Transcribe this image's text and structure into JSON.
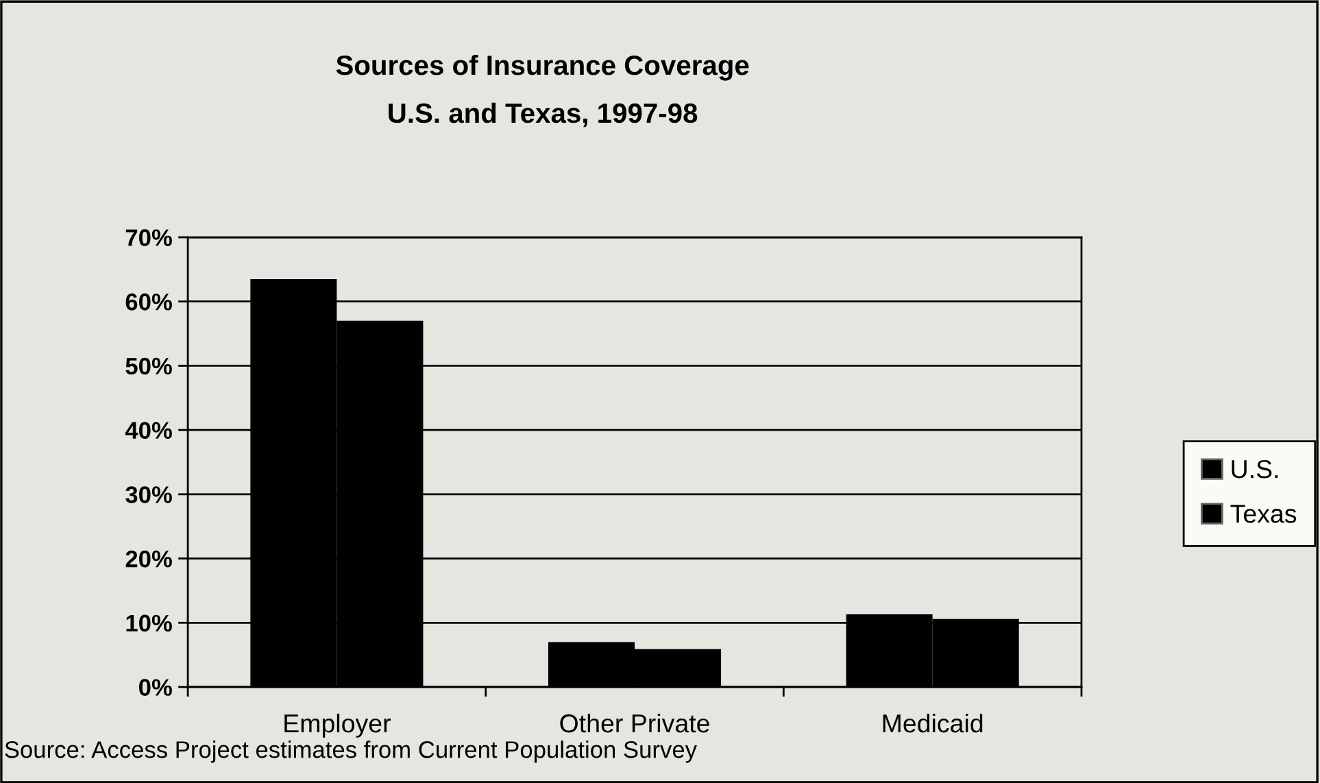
{
  "chart_data": {
    "type": "bar",
    "title": "Sources of Insurance Coverage\nU.S. and Texas, 1997-98",
    "categories": [
      "Employer",
      "Other Private",
      "Medicaid"
    ],
    "series": [
      {
        "name": "U.S.",
        "color": "#000000",
        "values": [
          63.5,
          7.0,
          11.3
        ]
      },
      {
        "name": "Texas",
        "color": "#000000",
        "values": [
          57.0,
          5.9,
          10.6
        ]
      }
    ],
    "ylim": [
      0,
      70
    ],
    "yticks": [
      {
        "value": 0,
        "label": "0%"
      },
      {
        "value": 10,
        "label": "10%"
      },
      {
        "value": 20,
        "label": "20%"
      },
      {
        "value": 30,
        "label": "30%"
      },
      {
        "value": 40,
        "label": "40%"
      },
      {
        "value": 50,
        "label": "50%"
      },
      {
        "value": 60,
        "label": "60%"
      },
      {
        "value": 70,
        "label": "70%"
      }
    ],
    "grid": "y",
    "legend": "right",
    "annotations": [
      "Source: Access Project estimates from Current Population Survey"
    ]
  }
}
